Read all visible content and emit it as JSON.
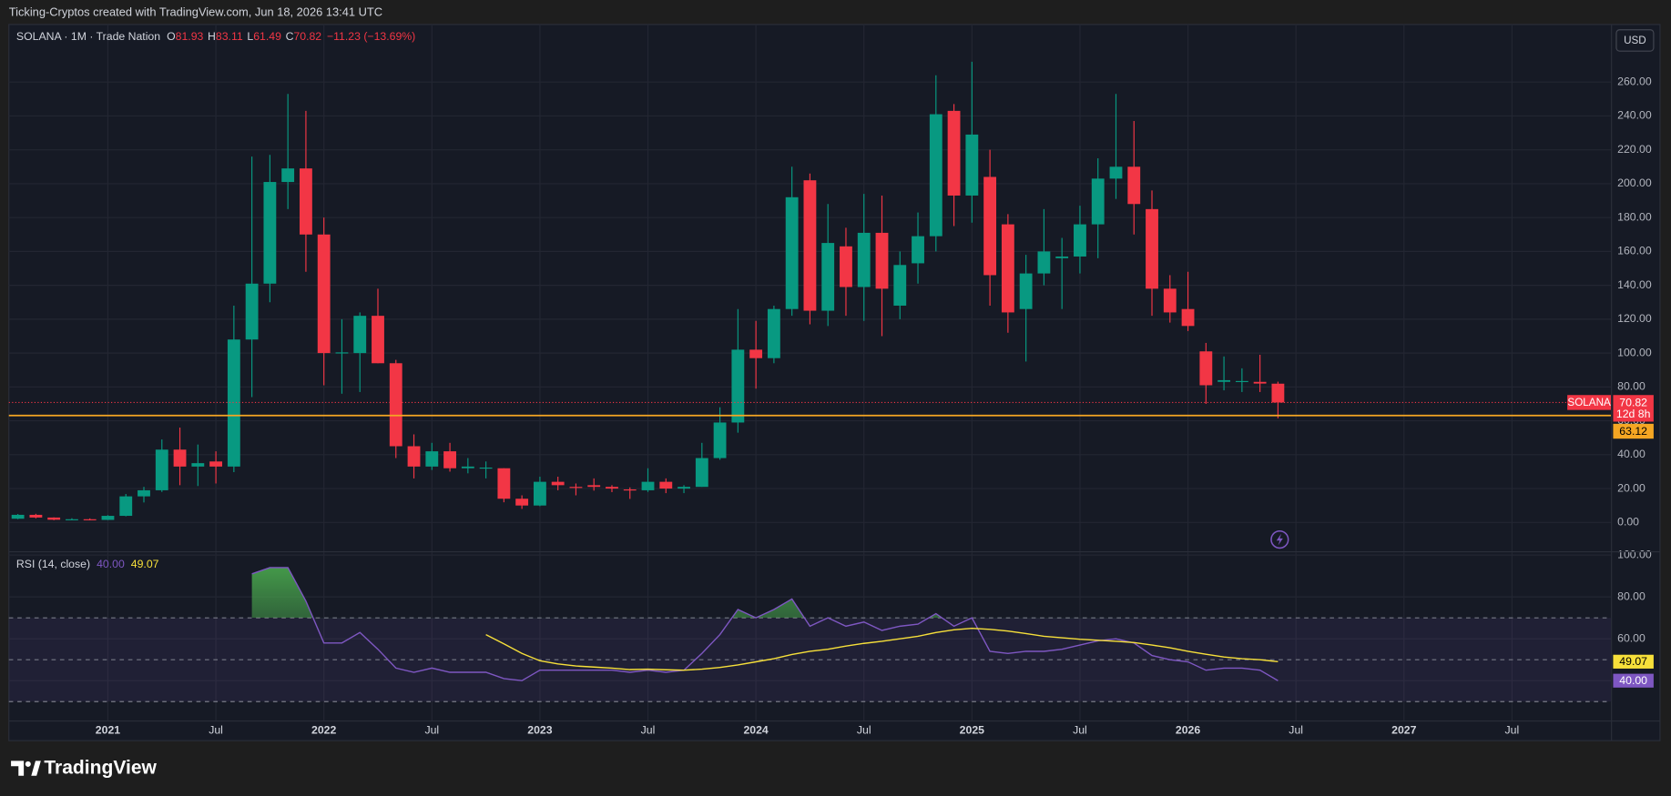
{
  "header": "Ticking-Cryptos created with TradingView.com, Jun 18, 2026 13:41 UTC",
  "footer": {
    "brand": "TradingView"
  },
  "chart_data": [
    {
      "type": "candlestick",
      "symbol": "SOLANA · 1M · Trade Nation",
      "currency": "USD",
      "ohlc_legend": [
        {
          "key": "O",
          "value": 81.93
        },
        {
          "key": "H",
          "value": 83.11
        },
        {
          "key": "L",
          "value": 61.49
        },
        {
          "key": "C",
          "value": 70.82
        }
      ],
      "change": "−11.23 (−13.69%)",
      "up_color": "#089981",
      "down_color": "#f23645",
      "categories": [
        "2020-08",
        "2020-09",
        "2020-10",
        "2020-11",
        "2020-12",
        "2021-01",
        "2021-02",
        "2021-03",
        "2021-04",
        "2021-05",
        "2021-06",
        "2021-07",
        "2021-08",
        "2021-09",
        "2021-10",
        "2021-11",
        "2021-12",
        "2022-01",
        "2022-02",
        "2022-03",
        "2022-04",
        "2022-05",
        "2022-06",
        "2022-07",
        "2022-08",
        "2022-09",
        "2022-10",
        "2022-11",
        "2022-12",
        "2023-01",
        "2023-02",
        "2023-03",
        "2023-04",
        "2023-05",
        "2023-06",
        "2023-07",
        "2023-08",
        "2023-09",
        "2023-10",
        "2023-11",
        "2023-12",
        "2024-01",
        "2024-02",
        "2024-03",
        "2024-04",
        "2024-05",
        "2024-06",
        "2024-07",
        "2024-08",
        "2024-09",
        "2024-10",
        "2024-11",
        "2024-12",
        "2025-01",
        "2025-02",
        "2025-03",
        "2025-04",
        "2025-05",
        "2025-06",
        "2025-07",
        "2025-08",
        "2025-09",
        "2025-10",
        "2025-11",
        "2025-12",
        "2026-01",
        "2026-02",
        "2026-03",
        "2026-04",
        "2026-05",
        "2026-06"
      ],
      "open": [
        2.2,
        4.5,
        2.9,
        1.6,
        1.9,
        1.5,
        3.9,
        15.4,
        19,
        43,
        33,
        36,
        33,
        108,
        141,
        201,
        209,
        170,
        100,
        100,
        122,
        94,
        45,
        33,
        42,
        32,
        32,
        32,
        14,
        10,
        24,
        21,
        22,
        21,
        19.5,
        19,
        24,
        20,
        21,
        38,
        59,
        102,
        97,
        126,
        202,
        125,
        163,
        139,
        171,
        128,
        153,
        169,
        243,
        193,
        204,
        176,
        126,
        147,
        156,
        157,
        176,
        203,
        210,
        185,
        138,
        126,
        101,
        83,
        83,
        83,
        81.93
      ],
      "high": [
        5.0,
        5.1,
        3.0,
        2.5,
        2.4,
        4.3,
        16.8,
        21,
        49,
        56,
        46,
        42,
        128,
        216,
        217,
        253,
        243,
        180,
        120,
        124,
        138,
        96,
        52,
        47,
        47,
        38,
        36,
        32,
        16,
        27,
        27,
        23,
        26,
        22,
        20.7,
        32,
        26,
        22,
        47,
        68,
        126,
        119,
        128,
        210,
        206,
        188,
        174,
        194,
        193,
        160,
        183,
        264,
        247,
        272,
        220,
        182,
        158,
        185,
        168,
        187,
        215,
        253,
        237,
        196,
        146,
        148,
        106,
        98,
        91,
        99,
        83.11
      ],
      "low": [
        1.9,
        2.4,
        1.3,
        1.3,
        1.2,
        1.4,
        3.6,
        11.8,
        18,
        22,
        21.5,
        23,
        29.7,
        74,
        130,
        185,
        148,
        81,
        76,
        77,
        94,
        38,
        26,
        31,
        30,
        29,
        26,
        11.9,
        8,
        9.6,
        19,
        16,
        18.8,
        17.9,
        13.9,
        18,
        17.3,
        17.3,
        21,
        37,
        53,
        79,
        94,
        122,
        117,
        116,
        122,
        119,
        110,
        120,
        141,
        160,
        175,
        177,
        128,
        112,
        95,
        140,
        126,
        147,
        156,
        191,
        170,
        122,
        118,
        113,
        70,
        78,
        77,
        77,
        61.49
      ],
      "close": [
        4.5,
        2.9,
        1.6,
        1.9,
        1.5,
        3.9,
        15.4,
        19,
        43,
        33,
        35,
        33,
        108,
        141,
        201,
        209,
        170,
        100,
        100.4,
        122,
        94,
        45,
        33,
        42,
        32,
        33,
        32.4,
        14,
        10,
        24,
        22,
        20.9,
        21,
        20,
        19,
        24,
        20,
        21,
        38,
        59,
        102,
        97,
        126,
        192,
        125,
        165,
        139,
        171,
        138,
        152,
        169,
        241,
        193,
        229,
        146,
        124,
        147,
        160,
        157,
        176,
        203,
        210,
        188,
        138,
        124,
        116,
        81,
        84,
        83.5,
        82,
        70.82
      ],
      "ylim": [
        -17,
        294
      ],
      "xlim": [
        "2020-08",
        "2027-12"
      ],
      "yticks": [
        {
          "value": 0,
          "label": "0.00"
        },
        {
          "value": 20,
          "label": "20.00"
        },
        {
          "value": 40,
          "label": "40.00"
        },
        {
          "value": 60,
          "label": "60.00"
        },
        {
          "value": 80,
          "label": "80.00"
        },
        {
          "value": 100,
          "label": "100.00"
        },
        {
          "value": 120,
          "label": "120.00"
        },
        {
          "value": 140,
          "label": "140.00"
        },
        {
          "value": 160,
          "label": "160.00"
        },
        {
          "value": 180,
          "label": "180.00"
        },
        {
          "value": 200,
          "label": "200.00"
        },
        {
          "value": 220,
          "label": "220.00"
        },
        {
          "value": 240,
          "label": "240.00"
        },
        {
          "value": 260,
          "label": "260.00"
        }
      ],
      "last_price": {
        "name": "SOLANA",
        "value": 70.82,
        "label": "70.82",
        "countdown": "12d 8h",
        "color": "#f23645"
      },
      "hline": {
        "value": 63.12,
        "label": "63.12",
        "color": "#f5a623"
      },
      "grid": true
    },
    {
      "type": "line",
      "title": "RSI (14, close)",
      "categories": [
        "2020-08",
        "2020-09",
        "2020-10",
        "2020-11",
        "2020-12",
        "2021-01",
        "2021-02",
        "2021-03",
        "2021-04",
        "2021-05",
        "2021-06",
        "2021-07",
        "2021-08",
        "2021-09",
        "2021-10",
        "2021-11",
        "2021-12",
        "2022-01",
        "2022-02",
        "2022-03",
        "2022-04",
        "2022-05",
        "2022-06",
        "2022-07",
        "2022-08",
        "2022-09",
        "2022-10",
        "2022-11",
        "2022-12",
        "2023-01",
        "2023-02",
        "2023-03",
        "2023-04",
        "2023-05",
        "2023-06",
        "2023-07",
        "2023-08",
        "2023-09",
        "2023-10",
        "2023-11",
        "2023-12",
        "2024-01",
        "2024-02",
        "2024-03",
        "2024-04",
        "2024-05",
        "2024-06",
        "2024-07",
        "2024-08",
        "2024-09",
        "2024-10",
        "2024-11",
        "2024-12",
        "2025-01",
        "2025-02",
        "2025-03",
        "2025-04",
        "2025-05",
        "2025-06",
        "2025-07",
        "2025-08",
        "2025-09",
        "2025-10",
        "2025-11",
        "2025-12",
        "2026-01",
        "2026-02",
        "2026-03",
        "2026-04",
        "2026-05",
        "2026-06"
      ],
      "series": [
        {
          "color": "#7e57c2",
          "value_label": "40.00",
          "values": [
            null,
            null,
            null,
            null,
            null,
            null,
            null,
            null,
            null,
            null,
            null,
            null,
            null,
            91,
            94,
            94,
            78,
            58,
            58,
            63,
            55,
            46,
            44,
            46,
            44,
            44,
            44,
            41,
            40,
            45,
            45,
            45,
            45,
            45,
            44,
            45,
            44,
            45,
            53,
            62,
            74,
            70,
            74,
            79,
            66,
            70,
            66,
            68,
            64,
            66,
            67,
            72,
            66,
            70,
            54,
            53,
            54,
            54,
            55,
            57,
            59,
            60,
            58,
            52,
            50,
            49,
            45,
            46,
            46,
            45,
            40
          ]
        },
        {
          "color": "#f7e03a",
          "value_label": "49.07",
          "values": [
            null,
            null,
            null,
            null,
            null,
            null,
            null,
            null,
            null,
            null,
            null,
            null,
            null,
            null,
            null,
            null,
            null,
            null,
            null,
            null,
            null,
            null,
            null,
            null,
            null,
            null,
            62,
            57.6,
            53,
            49.5,
            48,
            47,
            46.5,
            46,
            45.3,
            45.5,
            45.2,
            45,
            45.5,
            46.3,
            47.5,
            49,
            50.5,
            52.5,
            54,
            55,
            56.5,
            57.8,
            58.8,
            60,
            61.2,
            63,
            64.3,
            65,
            64.5,
            63.7,
            62.5,
            61.2,
            60.5,
            59.8,
            59.3,
            58.8,
            58.2,
            57,
            55.7,
            54,
            52.6,
            51.3,
            50.5,
            50,
            49.07
          ]
        }
      ],
      "levels": [
        70,
        50,
        30
      ],
      "ylim": [
        21,
        101.3
      ],
      "xlim": [
        "2020-08",
        "2027-12"
      ],
      "yticks": [
        {
          "value": 40,
          "label": "40.00"
        },
        {
          "value": 60,
          "label": "60.00"
        },
        {
          "value": 80,
          "label": "80.00"
        },
        {
          "value": 100,
          "label": "100.00"
        }
      ],
      "xticks": [
        {
          "value": "2021-01",
          "label": "2021"
        },
        {
          "value": "2021-07",
          "label": "Jul"
        },
        {
          "value": "2022-01",
          "label": "2022"
        },
        {
          "value": "2022-07",
          "label": "Jul"
        },
        {
          "value": "2023-01",
          "label": "2023"
        },
        {
          "value": "2023-07",
          "label": "Jul"
        },
        {
          "value": "2024-01",
          "label": "2024"
        },
        {
          "value": "2024-07",
          "label": "Jul"
        },
        {
          "value": "2025-01",
          "label": "2025"
        },
        {
          "value": "2025-07",
          "label": "Jul"
        },
        {
          "value": "2026-01",
          "label": "2026"
        },
        {
          "value": "2026-07",
          "label": "Jul"
        },
        {
          "value": "2027-01",
          "label": "2027"
        },
        {
          "value": "2027-07",
          "label": "Jul"
        }
      ],
      "grid": true
    }
  ]
}
